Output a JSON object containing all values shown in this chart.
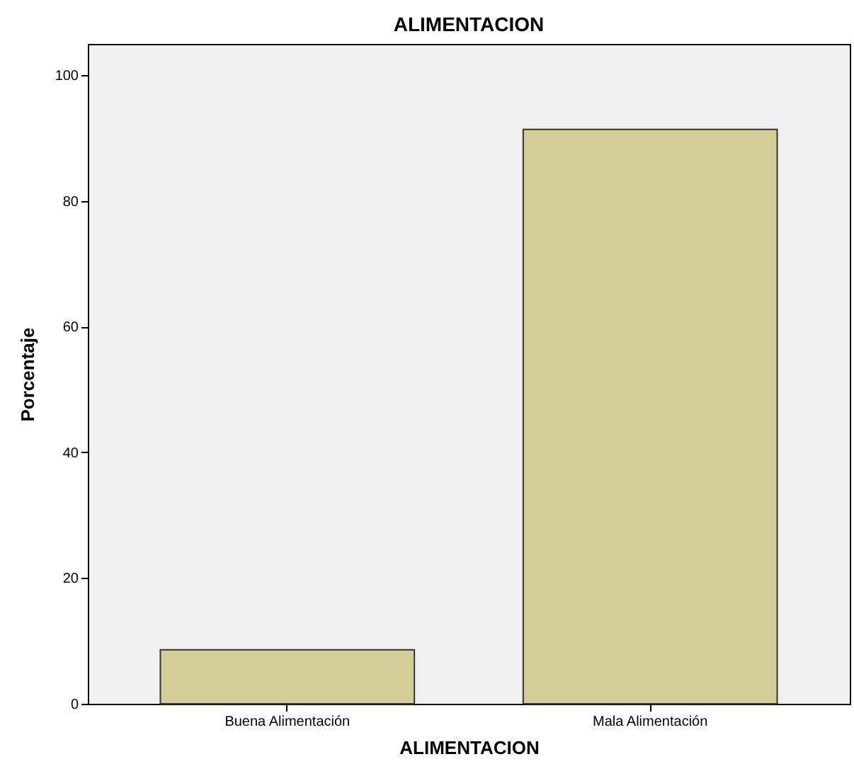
{
  "chart_data": {
    "type": "bar",
    "title": "ALIMENTACION",
    "xlabel": "ALIMENTACION",
    "ylabel": "Porcentaje",
    "categories": [
      "Buena Alimentación",
      "Mala Alimentación"
    ],
    "values": [
      8.6,
      91.4
    ],
    "color": "#d3ce97",
    "ylim": [
      0,
      105
    ],
    "yticks": [
      0,
      20,
      40,
      60,
      80,
      100
    ],
    "grid": false
  }
}
